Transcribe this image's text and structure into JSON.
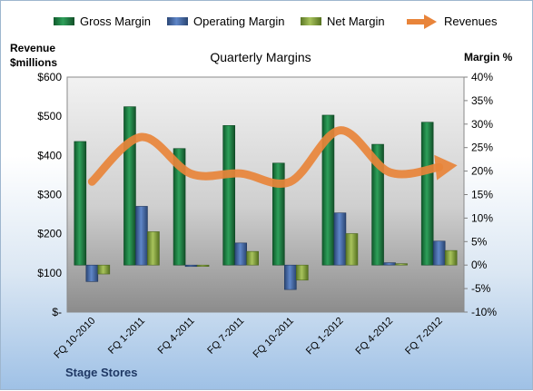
{
  "chart_data": {
    "type": "bar",
    "title": "Quarterly Margins",
    "footer": "Stage Stores",
    "categories": [
      "FQ 10-2010",
      "FQ 1-2011",
      "FQ 4-2011",
      "FQ 7-2011",
      "FQ 10-2011",
      "FQ 1-2012",
      "FQ 4-2012",
      "FQ 7-2012"
    ],
    "y_left": {
      "label_line1": "Revenue",
      "label_line2": "$millions",
      "ticks": [
        "$-",
        "$100",
        "$200",
        "$300",
        "$400",
        "$500",
        "$600"
      ],
      "ylim": [
        0,
        600
      ]
    },
    "y_right": {
      "label": "Margin %",
      "ticks": [
        "-10%",
        "-5%",
        "0%",
        "5%",
        "10%",
        "15%",
        "20%",
        "25%",
        "30%",
        "35%",
        "40%"
      ],
      "ylim": [
        -10,
        40
      ]
    },
    "series": [
      {
        "name": "Gross Margin",
        "axis": "right",
        "kind": "bar",
        "color": "#1e7b3f",
        "values": [
          26.3,
          33.7,
          24.8,
          29.7,
          21.7,
          31.9,
          25.7,
          30.4
        ]
      },
      {
        "name": "Operating Margin",
        "axis": "right",
        "kind": "bar",
        "color": "#3b5f9e",
        "values": [
          -3.5,
          12.5,
          -0.3,
          4.7,
          -5.2,
          11.1,
          0.5,
          5.1
        ]
      },
      {
        "name": "Net Margin",
        "axis": "right",
        "kind": "bar",
        "color": "#7c9d3a",
        "values": [
          -1.9,
          7.1,
          -0.2,
          2.9,
          -3.2,
          6.7,
          0.3,
          3.1
        ]
      },
      {
        "name": "Revenues",
        "axis": "left",
        "kind": "line",
        "color": "#e8843a",
        "values": [
          333,
          447,
          353,
          354,
          333,
          464,
          357,
          370
        ]
      }
    ],
    "legend_position": "top",
    "grid": false
  }
}
